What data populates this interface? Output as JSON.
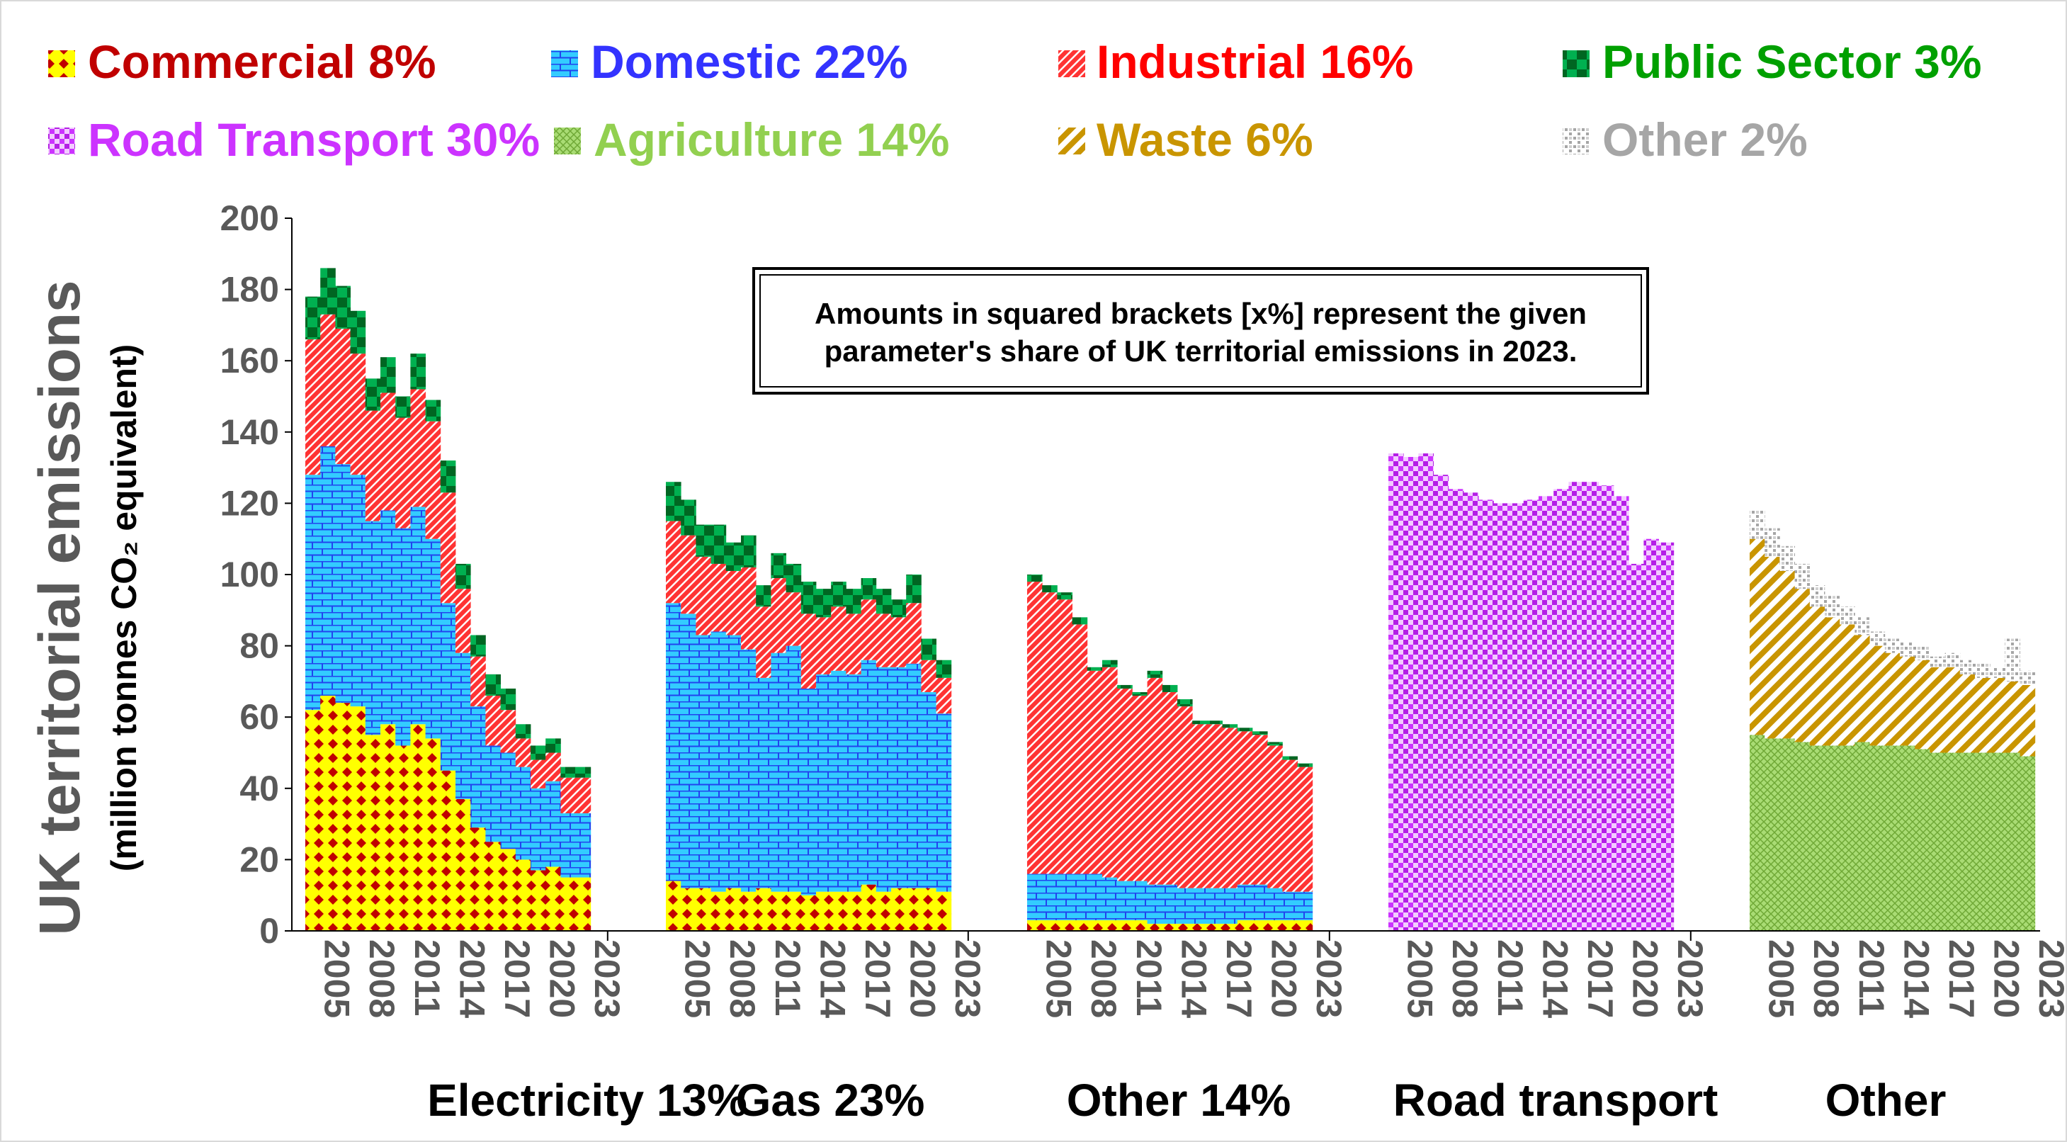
{
  "chart_data": {
    "type": "stacked-bar",
    "ylabel": "UK territorial emissions",
    "ylabel_sub": "(million tonnes CO₂ equivalent)",
    "ylim": [
      0,
      200
    ],
    "yticks": [
      0,
      20,
      40,
      60,
      80,
      100,
      120,
      140,
      160,
      180,
      200
    ],
    "xtick_years": [
      "2005",
      "2008",
      "2011",
      "2014",
      "2017",
      "2020",
      "2023"
    ],
    "annotation_lines": [
      "Amounts in squared brackets [x%] represent the given",
      "parameter's share of UK territorial emissions in 2023."
    ],
    "legend": [
      {
        "key": "commercial",
        "label": "Commercial 8%",
        "color": "#c00000"
      },
      {
        "key": "domestic",
        "label": "Domestic 22%",
        "color": "#3333ff"
      },
      {
        "key": "industrial",
        "label": "Industrial 16%",
        "color": "#ff0000"
      },
      {
        "key": "public",
        "label": "Public Sector 3%",
        "color": "#00a000"
      },
      {
        "key": "road",
        "label": "Road Transport 30%",
        "color": "#cc33ff"
      },
      {
        "key": "agriculture",
        "label": "Agriculture 14%",
        "color": "#92d050"
      },
      {
        "key": "waste",
        "label": "Waste 6%",
        "color": "#c99500"
      },
      {
        "key": "other",
        "label": "Other 2%",
        "color": "#a6a6a6"
      }
    ],
    "groups": [
      {
        "label": "Electricity 13%",
        "years": [
          2005,
          2006,
          2007,
          2008,
          2009,
          2010,
          2011,
          2012,
          2013,
          2014,
          2015,
          2016,
          2017,
          2018,
          2019,
          2020,
          2021,
          2022,
          2023
        ],
        "series": [
          {
            "key": "commercial",
            "values": [
              62,
              66,
              64,
              63,
              55,
              58,
              52,
              58,
              54,
              45,
              37,
              29,
              25,
              23,
              20,
              17,
              18,
              15,
              15
            ]
          },
          {
            "key": "domestic",
            "values": [
              66,
              70,
              67,
              65,
              60,
              60,
              61,
              61,
              56,
              47,
              41,
              34,
              27,
              27,
              26,
              23,
              24,
              18,
              18
            ]
          },
          {
            "key": "industrial",
            "values": [
              38,
              37,
              38,
              34,
              31,
              33,
              31,
              33,
              33,
              31,
              18,
              14,
              14,
              12,
              8,
              8,
              8,
              10,
              10
            ]
          },
          {
            "key": "public",
            "values": [
              12,
              13,
              12,
              12,
              9,
              10,
              6,
              10,
              6,
              9,
              7,
              6,
              6,
              6,
              4,
              4,
              4,
              3,
              3
            ]
          }
        ]
      },
      {
        "label": "Gas 23%",
        "years": [
          2005,
          2006,
          2007,
          2008,
          2009,
          2010,
          2011,
          2012,
          2013,
          2014,
          2015,
          2016,
          2017,
          2018,
          2019,
          2020,
          2021,
          2022,
          2023
        ],
        "series": [
          {
            "key": "commercial",
            "values": [
              14,
              12,
              12,
              11,
              12,
              11,
              12,
              11,
              11,
              10,
              11,
              11,
              11,
              13,
              11,
              12,
              12,
              12,
              11
            ]
          },
          {
            "key": "domestic",
            "values": [
              78,
              77,
              71,
              73,
              71,
              68,
              59,
              67,
              69,
              58,
              61,
              62,
              61,
              63,
              63,
              62,
              63,
              55,
              50
            ]
          },
          {
            "key": "industrial",
            "values": [
              23,
              22,
              22,
              19,
              18,
              23,
              20,
              21,
              15,
              21,
              16,
              18,
              17,
              17,
              15,
              14,
              17,
              9,
              10
            ]
          },
          {
            "key": "public",
            "values": [
              11,
              10,
              9,
              11,
              8,
              9,
              6,
              7,
              8,
              9,
              8,
              7,
              7,
              6,
              7,
              5,
              8,
              6,
              5
            ]
          }
        ]
      },
      {
        "label": "Other 14%",
        "years": [
          2005,
          2006,
          2007,
          2008,
          2009,
          2010,
          2011,
          2012,
          2013,
          2014,
          2015,
          2016,
          2017,
          2018,
          2019,
          2020,
          2021,
          2022,
          2023
        ],
        "series": [
          {
            "key": "commercial",
            "values": [
              3,
              3,
              3,
              3,
              3,
              3,
              3,
              3,
              2,
              2,
              2,
              2,
              2,
              2,
              3,
              3,
              3,
              3,
              3
            ]
          },
          {
            "key": "domestic",
            "values": [
              13,
              13,
              13,
              13,
              13,
              12,
              11,
              11,
              11,
              11,
              10,
              10,
              10,
              10,
              10,
              10,
              9,
              8,
              8
            ]
          },
          {
            "key": "industrial",
            "values": [
              82,
              79,
              77,
              70,
              57,
              59,
              54,
              52,
              58,
              54,
              51,
              46,
              46,
              45,
              43,
              42,
              40,
              37,
              35
            ]
          },
          {
            "key": "public",
            "values": [
              2,
              2,
              2,
              2,
              1,
              2,
              1,
              1,
              2,
              2,
              2,
              1,
              1,
              1,
              1,
              1,
              1,
              1,
              1
            ]
          }
        ]
      },
      {
        "label": "Road transport",
        "years": [
          2005,
          2006,
          2007,
          2008,
          2009,
          2010,
          2011,
          2012,
          2013,
          2014,
          2015,
          2016,
          2017,
          2018,
          2019,
          2020,
          2021,
          2022,
          2023
        ],
        "series": [
          {
            "key": "road",
            "values": [
              134,
              133,
              134,
              128,
              124,
              123,
              121,
              120,
              120,
              121,
              122,
              124,
              126,
              126,
              125,
              122,
              103,
              110,
              109
            ]
          }
        ]
      },
      {
        "label": "Other",
        "years": [
          2005,
          2006,
          2007,
          2008,
          2009,
          2010,
          2011,
          2012,
          2013,
          2014,
          2015,
          2016,
          2017,
          2018,
          2019,
          2020,
          2021,
          2022,
          2023
        ],
        "series": [
          {
            "key": "agriculture",
            "values": [
              55,
              54,
              54,
              53,
              52,
              52,
              52,
              53,
              52,
              52,
              52,
              51,
              50,
              50,
              50,
              50,
              50,
              50,
              49
            ]
          },
          {
            "key": "waste",
            "values": [
              55,
              51,
              47,
              43,
              39,
              36,
              34,
              30,
              28,
              26,
              25,
              25,
              24,
              24,
              22,
              21,
              21,
              20,
              20
            ]
          },
          {
            "key": "other",
            "values": [
              8,
              8,
              7,
              7,
              6,
              6,
              5,
              5,
              4,
              4,
              4,
              4,
              3,
              4,
              4,
              4,
              3,
              12,
              4
            ]
          }
        ]
      }
    ]
  }
}
